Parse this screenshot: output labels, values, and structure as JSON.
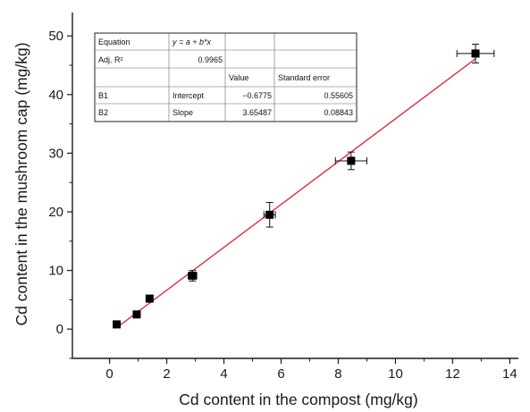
{
  "chart_data": {
    "type": "scatter",
    "xlabel": "Cd content  in the compost (mg/kg)",
    "ylabel": "Cd content in the mushroom cap (mg/kg)",
    "xlim": [
      -1.3,
      14.3
    ],
    "ylim": [
      -5,
      54
    ],
    "xticks": [
      0,
      2,
      4,
      6,
      8,
      10,
      12,
      14
    ],
    "yticks": [
      0,
      10,
      20,
      30,
      40,
      50
    ],
    "grid": false,
    "points": [
      {
        "x": 0.25,
        "y": 0.8,
        "xerr": 0,
        "yerr": 0
      },
      {
        "x": 0.95,
        "y": 2.5,
        "xerr": 0,
        "yerr": 0
      },
      {
        "x": 1.4,
        "y": 5.2,
        "xerr": 0,
        "yerr": 0
      },
      {
        "x": 2.9,
        "y": 9.1,
        "xerr": 0.15,
        "yerr": 0.9
      },
      {
        "x": 5.6,
        "y": 19.5,
        "xerr": 0.2,
        "yerr": 2.1
      },
      {
        "x": 8.45,
        "y": 28.7,
        "xerr": 0.55,
        "yerr": 1.5
      },
      {
        "x": 12.8,
        "y": 47.0,
        "xerr": 0.65,
        "yerr": 1.6
      }
    ],
    "fit": {
      "intercept": -0.6775,
      "slope": 3.65487,
      "x_range": [
        0.25,
        12.8
      ],
      "color": "#e0202a"
    },
    "marker_color": "#000000",
    "fit_table": {
      "equation_label": "Equation",
      "equation": "y = a + b*x",
      "adjr2_label": "Adj. R²",
      "adjr2_value": "0.9965",
      "col_value": "Value",
      "col_se": "Standard error",
      "rows": [
        {
          "param": "B1",
          "name": "Intercept",
          "value": "−0.6775",
          "se": "0.55605"
        },
        {
          "param": "B2",
          "name": "Slope",
          "value": "3.65487",
          "se": "0.08843"
        }
      ]
    }
  }
}
